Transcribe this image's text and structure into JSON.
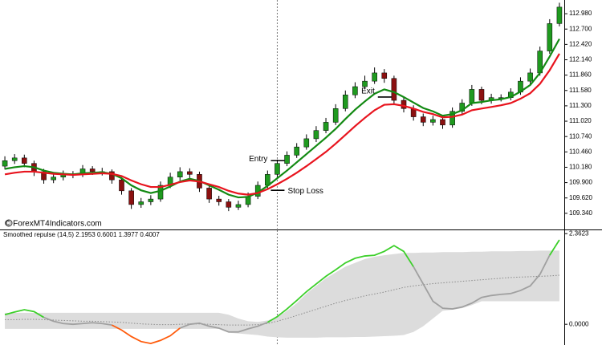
{
  "chart_data": [
    {
      "type": "candlestick",
      "watermark": "© ForexMT4Indicators.com",
      "ylim": [
        109.06,
        113.23
      ],
      "yticks": [
        {
          "value": 112.98,
          "label": "112.980"
        },
        {
          "value": 112.7,
          "label": "112.700"
        },
        {
          "value": 112.42,
          "label": "112.420"
        },
        {
          "value": 112.14,
          "label": "112.140"
        },
        {
          "value": 111.86,
          "label": "111.860"
        },
        {
          "value": 111.58,
          "label": "111.580"
        },
        {
          "value": 111.3,
          "label": "111.300"
        },
        {
          "value": 111.02,
          "label": "111.020"
        },
        {
          "value": 110.74,
          "label": "110.740"
        },
        {
          "value": 110.46,
          "label": "110.460"
        },
        {
          "value": 110.18,
          "label": "110.180"
        },
        {
          "value": 109.9,
          "label": "109.900"
        },
        {
          "value": 109.62,
          "label": "109.620"
        },
        {
          "value": 109.34,
          "label": "109.340"
        }
      ],
      "up_color": "#1f9a1f",
      "down_color": "#8b1010",
      "wick_color": "#000000",
      "candles": {
        "open": [
          110.2,
          110.3,
          110.35,
          110.25,
          110.1,
          109.95,
          110.0,
          110.05,
          110.05,
          110.15,
          110.1,
          110.1,
          109.95,
          109.75,
          109.5,
          109.55,
          109.6,
          109.85,
          110.0,
          110.1,
          110.05,
          109.8,
          109.6,
          109.55,
          109.45,
          109.5,
          109.65,
          109.85,
          110.05,
          110.25,
          110.4,
          110.55,
          110.7,
          110.85,
          111.0,
          111.25,
          111.5,
          111.65,
          111.75,
          111.9,
          111.8,
          111.4,
          111.25,
          111.1,
          111.0,
          111.05,
          110.95,
          111.2,
          111.35,
          111.6,
          111.4,
          111.45,
          111.45,
          111.55,
          111.75,
          111.9,
          112.3,
          112.8
        ],
        "high": [
          110.38,
          110.42,
          110.41,
          110.3,
          110.15,
          110.07,
          110.12,
          110.11,
          110.22,
          110.2,
          110.17,
          110.14,
          110.0,
          109.8,
          109.62,
          109.67,
          109.92,
          110.08,
          110.18,
          110.16,
          110.1,
          109.85,
          109.66,
          109.6,
          109.57,
          109.72,
          109.92,
          110.12,
          110.32,
          110.47,
          110.62,
          110.78,
          110.93,
          111.08,
          111.33,
          111.58,
          111.73,
          111.85,
          112.0,
          111.97,
          111.85,
          111.46,
          111.31,
          111.16,
          111.12,
          111.11,
          111.27,
          111.42,
          111.68,
          111.65,
          111.52,
          111.51,
          111.62,
          111.82,
          111.98,
          112.38,
          112.88,
          113.18
        ],
        "low": [
          110.14,
          110.24,
          110.18,
          110.02,
          109.88,
          109.89,
          109.94,
          109.98,
          110.0,
          110.04,
          110.03,
          109.88,
          109.68,
          109.42,
          109.44,
          109.49,
          109.55,
          109.8,
          109.94,
          109.98,
          109.73,
          109.53,
          109.48,
          109.38,
          109.4,
          109.45,
          109.6,
          109.8,
          110.0,
          110.2,
          110.35,
          110.5,
          110.64,
          110.8,
          110.95,
          111.2,
          111.44,
          111.6,
          111.7,
          111.72,
          111.33,
          111.18,
          111.03,
          110.93,
          110.94,
          110.88,
          110.9,
          111.15,
          111.3,
          111.33,
          111.34,
          111.38,
          111.4,
          111.5,
          111.7,
          111.85,
          112.25,
          112.75
        ],
        "close": [
          110.3,
          110.35,
          110.25,
          110.1,
          109.95,
          110.0,
          110.05,
          110.05,
          110.15,
          110.1,
          110.1,
          109.95,
          109.75,
          109.5,
          109.55,
          109.6,
          109.85,
          110.0,
          110.1,
          110.05,
          109.8,
          109.6,
          109.55,
          109.45,
          109.5,
          109.65,
          109.85,
          110.05,
          110.25,
          110.4,
          110.55,
          110.7,
          110.85,
          111.0,
          111.25,
          111.5,
          111.65,
          111.75,
          111.9,
          111.8,
          111.4,
          111.25,
          111.1,
          111.0,
          111.05,
          110.95,
          111.2,
          111.35,
          111.6,
          111.4,
          111.45,
          111.45,
          111.55,
          111.75,
          111.9,
          112.3,
          112.8,
          113.1
        ]
      },
      "moving_averages": [
        {
          "color": "#138a13",
          "values": [
            110.15,
            110.18,
            110.2,
            110.18,
            110.12,
            110.08,
            110.06,
            110.05,
            110.07,
            110.08,
            110.09,
            110.06,
            109.98,
            109.85,
            109.76,
            109.71,
            109.75,
            109.83,
            109.92,
            109.97,
            109.93,
            109.85,
            109.77,
            109.68,
            109.63,
            109.64,
            109.72,
            109.84,
            109.98,
            110.12,
            110.27,
            110.42,
            110.57,
            110.72,
            110.88,
            111.06,
            111.23,
            111.38,
            111.52,
            111.6,
            111.55,
            111.46,
            111.36,
            111.26,
            111.2,
            111.12,
            111.15,
            111.22,
            111.35,
            111.37,
            111.4,
            111.42,
            111.46,
            111.56,
            111.68,
            111.9,
            112.2,
            112.52
          ]
        },
        {
          "color": "#e8141e",
          "values": [
            110.05,
            110.08,
            110.1,
            110.1,
            110.08,
            110.06,
            110.05,
            110.04,
            110.05,
            110.06,
            110.07,
            110.06,
            110.02,
            109.94,
            109.87,
            109.82,
            109.82,
            109.86,
            109.91,
            109.94,
            109.92,
            109.87,
            109.82,
            109.75,
            109.7,
            109.68,
            109.71,
            109.78,
            109.87,
            109.97,
            110.08,
            110.2,
            110.33,
            110.46,
            110.61,
            110.77,
            110.93,
            111.08,
            111.22,
            111.32,
            111.33,
            111.3,
            111.25,
            111.19,
            111.15,
            111.09,
            111.1,
            111.14,
            111.22,
            111.25,
            111.28,
            111.31,
            111.35,
            111.43,
            111.53,
            111.7,
            111.95,
            112.25
          ]
        }
      ],
      "annotations": [
        {
          "text": "Entry",
          "index": 28,
          "price": 110.3,
          "side": "left"
        },
        {
          "text": "Stop Loss",
          "index": 28,
          "price": 109.76,
          "side": "right"
        },
        {
          "text": "Exit",
          "index": 39,
          "price": 111.46,
          "side": "left"
        }
      ],
      "cursor_index": 28
    },
    {
      "type": "line",
      "title": "Smoothed repulse (14,5) 2.1953 0.6001 1.3977 0.4007",
      "ylim": [
        -0.54,
        2.45
      ],
      "yticks": [
        {
          "value": 0,
          "label": "0.0000"
        },
        {
          "value": 2.3623,
          "label": "2.3623"
        }
      ],
      "series": [
        {
          "color": "#a0a0a0",
          "rise_color": "#3ccf2a",
          "fall_color": "#ff5a0a",
          "values": [
            0.25,
            0.32,
            0.38,
            0.33,
            0.18,
            0.08,
            0.02,
            0.0,
            0.02,
            0.04,
            0.02,
            -0.02,
            -0.15,
            -0.32,
            -0.45,
            -0.5,
            -0.42,
            -0.3,
            -0.1,
            0.0,
            0.03,
            -0.05,
            -0.1,
            -0.2,
            -0.2,
            -0.12,
            -0.05,
            0.05,
            0.2,
            0.4,
            0.62,
            0.85,
            1.05,
            1.25,
            1.42,
            1.6,
            1.72,
            1.78,
            1.8,
            1.9,
            2.05,
            1.9,
            1.5,
            1.05,
            0.6,
            0.42,
            0.4,
            0.45,
            0.55,
            0.7,
            0.75,
            0.78,
            0.8,
            0.88,
            1.0,
            1.3,
            1.8,
            2.2
          ]
        }
      ],
      "band": {
        "color": "#dcdcdc",
        "upper": [
          0.3,
          0.3,
          0.3,
          0.3,
          0.3,
          0.3,
          0.3,
          0.3,
          0.3,
          0.3,
          0.3,
          0.3,
          0.3,
          0.3,
          0.3,
          0.3,
          0.3,
          0.3,
          0.3,
          0.3,
          0.3,
          0.3,
          0.3,
          0.25,
          0.15,
          0.08,
          0.06,
          0.1,
          0.18,
          0.35,
          0.55,
          0.8,
          1.0,
          1.2,
          1.35,
          1.5,
          1.6,
          1.7,
          1.76,
          1.8,
          1.83,
          1.86,
          1.86,
          1.87,
          1.87,
          1.88,
          1.88,
          1.88,
          1.89,
          1.89,
          1.9,
          1.9,
          1.9,
          1.91,
          1.91,
          1.92,
          1.92,
          1.92
        ],
        "lower": [
          -0.12,
          -0.12,
          -0.12,
          -0.12,
          -0.12,
          -0.12,
          -0.12,
          -0.12,
          -0.12,
          -0.12,
          -0.12,
          -0.12,
          -0.12,
          -0.12,
          -0.12,
          -0.12,
          -0.12,
          -0.12,
          -0.12,
          -0.12,
          -0.12,
          -0.12,
          -0.12,
          -0.22,
          -0.24,
          -0.26,
          -0.28,
          -0.32,
          -0.34,
          -0.35,
          -0.35,
          -0.35,
          -0.35,
          -0.34,
          -0.34,
          -0.34,
          -0.33,
          -0.33,
          -0.32,
          -0.31,
          -0.3,
          -0.28,
          -0.2,
          -0.05,
          0.15,
          0.35,
          0.38,
          0.42,
          0.5,
          0.6,
          0.6,
          0.6,
          0.6,
          0.6,
          0.6,
          0.6,
          0.6,
          0.6
        ]
      },
      "signal": {
        "color": "#8a8a8a",
        "values": [
          0.12,
          0.12,
          0.13,
          0.13,
          0.12,
          0.11,
          0.1,
          0.09,
          0.08,
          0.08,
          0.07,
          0.06,
          0.05,
          0.03,
          0.01,
          0.0,
          -0.01,
          -0.01,
          0.0,
          0.01,
          0.01,
          0.0,
          -0.01,
          -0.02,
          -0.02,
          -0.02,
          -0.01,
          0.02,
          0.08,
          0.15,
          0.23,
          0.31,
          0.39,
          0.47,
          0.55,
          0.62,
          0.68,
          0.74,
          0.79,
          0.84,
          0.9,
          0.96,
          1.0,
          1.03,
          1.06,
          1.08,
          1.1,
          1.12,
          1.14,
          1.16,
          1.18,
          1.2,
          1.22,
          1.23,
          1.24,
          1.25,
          1.26,
          1.28
        ]
      },
      "cursor_index": 28
    }
  ]
}
